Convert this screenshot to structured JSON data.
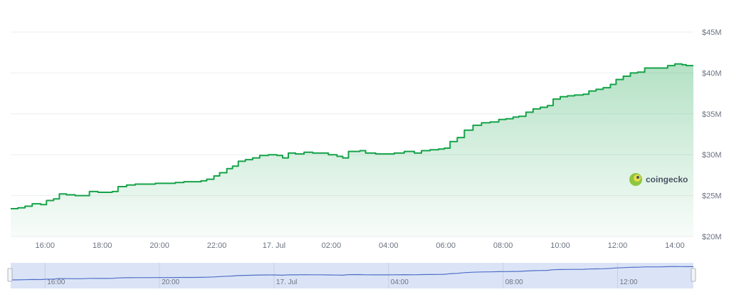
{
  "chart_data": {
    "type": "area",
    "title": "",
    "xlabel": "",
    "ylabel": "",
    "x_ticks": [
      "16:00",
      "18:00",
      "20:00",
      "22:00",
      "17. Jul",
      "02:00",
      "04:00",
      "06:00",
      "08:00",
      "10:00",
      "12:00",
      "14:00"
    ],
    "x_tick_hours": [
      16,
      18,
      20,
      22,
      24,
      26,
      28,
      30,
      32,
      34,
      36,
      38
    ],
    "xlim_hours": [
      14.8,
      38.65
    ],
    "ylim": [
      20,
      45
    ],
    "y_ticks": [
      20,
      25,
      30,
      35,
      40,
      45
    ],
    "y_tick_labels": [
      "$20M",
      "$25M",
      "$30M",
      "$35M",
      "$40M",
      "$45M"
    ],
    "y_unit": "$M",
    "grid": true,
    "series": [
      {
        "color": "#16a34a",
        "points": [
          [
            14.8,
            23.4
          ],
          [
            15.05,
            23.5
          ],
          [
            15.3,
            23.7
          ],
          [
            15.55,
            24.0
          ],
          [
            15.85,
            23.9
          ],
          [
            16.05,
            24.4
          ],
          [
            16.3,
            24.6
          ],
          [
            16.5,
            25.2
          ],
          [
            16.75,
            25.1
          ],
          [
            17.05,
            25.0
          ],
          [
            17.3,
            25.0
          ],
          [
            17.55,
            25.5
          ],
          [
            17.85,
            25.4
          ],
          [
            18.1,
            25.4
          ],
          [
            18.35,
            25.5
          ],
          [
            18.55,
            26.1
          ],
          [
            18.85,
            26.3
          ],
          [
            19.15,
            26.4
          ],
          [
            19.5,
            26.4
          ],
          [
            19.85,
            26.5
          ],
          [
            20.2,
            26.5
          ],
          [
            20.55,
            26.6
          ],
          [
            20.85,
            26.7
          ],
          [
            21.2,
            26.7
          ],
          [
            21.45,
            26.8
          ],
          [
            21.65,
            27.0
          ],
          [
            21.9,
            27.4
          ],
          [
            22.1,
            27.8
          ],
          [
            22.35,
            28.3
          ],
          [
            22.55,
            28.6
          ],
          [
            22.75,
            29.2
          ],
          [
            23.0,
            29.4
          ],
          [
            23.25,
            29.6
          ],
          [
            23.5,
            29.9
          ],
          [
            23.8,
            30.0
          ],
          [
            24.1,
            29.9
          ],
          [
            24.3,
            29.6
          ],
          [
            24.5,
            30.2
          ],
          [
            24.75,
            30.1
          ],
          [
            25.05,
            30.3
          ],
          [
            25.35,
            30.2
          ],
          [
            25.65,
            30.2
          ],
          [
            25.9,
            30.0
          ],
          [
            26.2,
            29.8
          ],
          [
            26.4,
            29.6
          ],
          [
            26.6,
            30.4
          ],
          [
            27.0,
            30.5
          ],
          [
            27.2,
            30.2
          ],
          [
            27.55,
            30.1
          ],
          [
            27.9,
            30.1
          ],
          [
            28.2,
            30.2
          ],
          [
            28.55,
            30.4
          ],
          [
            28.9,
            30.2
          ],
          [
            29.15,
            30.5
          ],
          [
            29.45,
            30.6
          ],
          [
            29.75,
            30.7
          ],
          [
            29.95,
            30.8
          ],
          [
            30.15,
            31.6
          ],
          [
            30.4,
            32.1
          ],
          [
            30.65,
            33.0
          ],
          [
            30.95,
            33.6
          ],
          [
            31.25,
            33.9
          ],
          [
            31.55,
            34.0
          ],
          [
            31.85,
            34.3
          ],
          [
            32.1,
            34.4
          ],
          [
            32.35,
            34.6
          ],
          [
            32.55,
            34.7
          ],
          [
            32.8,
            35.2
          ],
          [
            33.05,
            35.6
          ],
          [
            33.3,
            35.8
          ],
          [
            33.55,
            36.0
          ],
          [
            33.75,
            36.8
          ],
          [
            34.0,
            37.1
          ],
          [
            34.25,
            37.2
          ],
          [
            34.5,
            37.3
          ],
          [
            34.8,
            37.4
          ],
          [
            35.0,
            37.8
          ],
          [
            35.25,
            38.0
          ],
          [
            35.5,
            38.2
          ],
          [
            35.75,
            38.6
          ],
          [
            35.95,
            39.2
          ],
          [
            36.2,
            39.6
          ],
          [
            36.45,
            40.0
          ],
          [
            36.7,
            40.1
          ],
          [
            36.95,
            40.6
          ],
          [
            37.2,
            40.6
          ],
          [
            37.5,
            40.6
          ],
          [
            37.75,
            40.9
          ],
          [
            38.0,
            41.1
          ],
          [
            38.25,
            41.0
          ],
          [
            38.4,
            40.9
          ],
          [
            38.65,
            40.9
          ]
        ]
      }
    ],
    "navigator": {
      "x_ticks": [
        "16:00",
        "20:00",
        "17. Jul",
        "04:00",
        "08:00",
        "12:00"
      ],
      "x_tick_hours": [
        16,
        20,
        24,
        28,
        32,
        36
      ]
    },
    "watermark": "coingecko"
  }
}
